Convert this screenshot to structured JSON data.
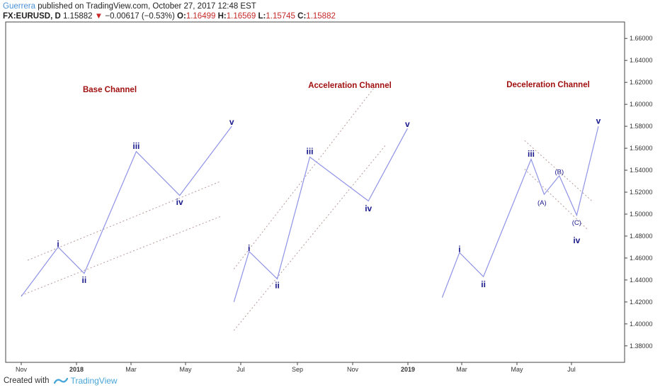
{
  "header": {
    "author": "Guerrera",
    "published_text": "published on TradingView.com, October 27, 2017 12:48 EST",
    "symbol": "FX:EURUSD, D",
    "price": "1.15882",
    "change_arrow": "▼",
    "change": "−0.00617 (−0.53%)",
    "o_label": "O:",
    "o_value": "1.16499",
    "h_label": "H:",
    "h_value": "1.16569",
    "l_label": "L:",
    "l_value": "1.15745",
    "c_label": "C:",
    "c_value": "1.15882"
  },
  "footer": {
    "created_with": "Created with",
    "brand": "TradingView"
  },
  "colors": {
    "wave_line": "#8f93e6",
    "channel_line": "#b79a9a",
    "title_red": "#a01010",
    "wave_label": "#1a1a8c",
    "up_down_red": "#c62828"
  },
  "chart_data": {
    "type": "line",
    "x_ticks": [
      "Nov",
      "2018",
      "Mar",
      "May",
      "Jul",
      "Sep",
      "Nov",
      "2019",
      "Mar",
      "May",
      "Jul"
    ],
    "y_ticks": [
      "1.38000",
      "1.40000",
      "1.42000",
      "1.44000",
      "1.46000",
      "1.48000",
      "1.50000",
      "1.52000",
      "1.54000",
      "1.56000",
      "1.58000",
      "1.60000",
      "1.62000",
      "1.64000",
      "1.66000"
    ],
    "ylim": [
      1.365,
      1.675
    ],
    "grid": false,
    "titles": [
      "Base Channel",
      "Acceleration Channel",
      "Deceleration Channel"
    ],
    "series": [
      {
        "values": [
          [
            -0.3,
            1.425
          ],
          [
            1.4,
            1.47
          ],
          [
            2.6,
            1.446
          ],
          [
            5.0,
            1.557
          ],
          [
            7.0,
            1.517
          ],
          [
            9.4,
            1.58
          ]
        ]
      },
      {
        "values": [
          [
            9.5,
            1.42
          ],
          [
            10.2,
            1.466
          ],
          [
            11.5,
            1.441
          ],
          [
            13.0,
            1.552
          ],
          [
            15.7,
            1.512
          ],
          [
            17.5,
            1.578
          ]
        ]
      },
      {
        "values": [
          [
            19.1,
            1.424
          ],
          [
            19.9,
            1.465
          ],
          [
            21.0,
            1.443
          ],
          [
            23.2,
            1.55
          ],
          [
            23.8,
            1.518
          ],
          [
            24.5,
            1.535
          ],
          [
            25.3,
            1.499
          ],
          [
            26.3,
            1.58
          ]
        ]
      }
    ],
    "wave_labels": [
      {
        "text": "i",
        "x": 1.4,
        "y": 1.473
      },
      {
        "text": "ii",
        "x": 2.6,
        "y": 1.44
      },
      {
        "text": "iii",
        "x": 5.0,
        "y": 1.562
      },
      {
        "text": "iv",
        "x": 7.0,
        "y": 1.511
      },
      {
        "text": "v",
        "x": 9.4,
        "y": 1.584
      },
      {
        "text": "i",
        "x": 10.2,
        "y": 1.469
      },
      {
        "text": "ii",
        "x": 11.5,
        "y": 1.435
      },
      {
        "text": "iii",
        "x": 13.0,
        "y": 1.557
      },
      {
        "text": "iv",
        "x": 15.7,
        "y": 1.505
      },
      {
        "text": "v",
        "x": 17.5,
        "y": 1.582
      },
      {
        "text": "i",
        "x": 19.9,
        "y": 1.468
      },
      {
        "text": "ii",
        "x": 21.0,
        "y": 1.436
      },
      {
        "text": "iii",
        "x": 23.2,
        "y": 1.555
      },
      {
        "text": "(A)",
        "x": 23.7,
        "y": 1.511
      },
      {
        "text": "(B)",
        "x": 24.5,
        "y": 1.539
      },
      {
        "text": "(C)",
        "x": 25.3,
        "y": 1.493
      },
      {
        "text": "iv",
        "x": 25.3,
        "y": 1.476
      },
      {
        "text": "v",
        "x": 26.3,
        "y": 1.585
      }
    ],
    "channel_lines": [
      {
        "from": [
          -0.3,
          1.426
        ],
        "to": [
          8.9,
          1.498
        ]
      },
      {
        "from": [
          0.0,
          1.458
        ],
        "to": [
          8.9,
          1.53
        ]
      },
      {
        "from": [
          9.5,
          1.394
        ],
        "to": [
          16.5,
          1.563
        ]
      },
      {
        "from": [
          9.5,
          1.45
        ],
        "to": [
          16.0,
          1.616
        ]
      },
      {
        "from": [
          22.9,
          1.541
        ],
        "to": [
          25.8,
          1.486
        ]
      },
      {
        "from": [
          22.9,
          1.567
        ],
        "to": [
          26.0,
          1.512
        ]
      }
    ]
  }
}
